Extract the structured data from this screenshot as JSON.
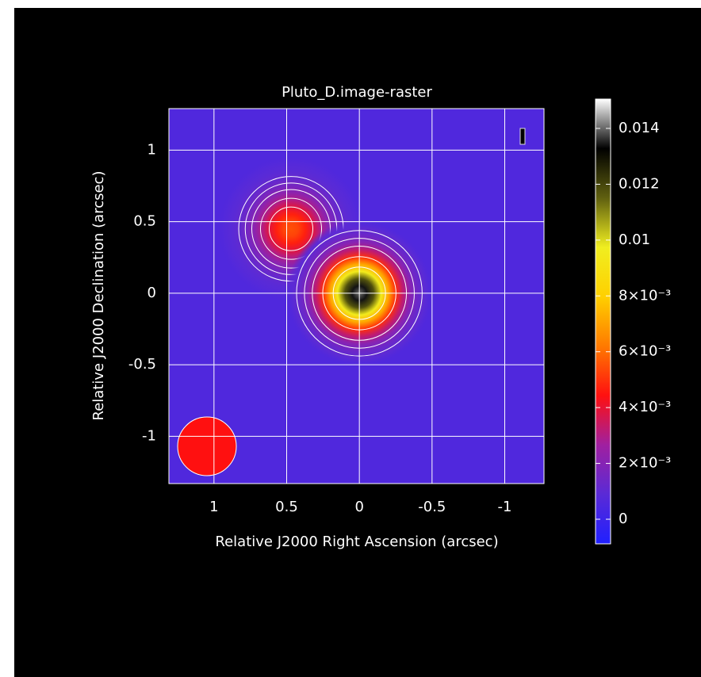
{
  "chart_data": {
    "type": "raster",
    "title": "Pluto_D.image-raster",
    "x_label": "Relative J2000 Right Ascension (arcsec)",
    "y_label": "Relative J2000 Declination (arcsec)",
    "xlim": [
      1.31,
      -1.27
    ],
    "xticks": [
      1,
      0.5,
      0,
      -0.5,
      -1
    ],
    "ylim": [
      -1.33,
      1.29
    ],
    "yticks": [
      -1,
      -0.5,
      0,
      0.5,
      1
    ],
    "grid": true,
    "sources": [
      {
        "x": 0.47,
        "y": 0.45,
        "peak": 0.0055
      },
      {
        "x": 0,
        "y": 0,
        "peak": 0.014
      }
    ],
    "background_value": 0.0006,
    "clim": [
      -0.00088,
      0.01505
    ],
    "cticks": [
      0,
      {
        "value": 0.002,
        "label": "2×10⁻³"
      },
      {
        "value": 0.004,
        "label": "4×10⁻³"
      },
      {
        "value": 0.006,
        "label": "6×10⁻³"
      },
      {
        "value": 0.008,
        "label": "8×10⁻³"
      },
      0.01,
      0.012,
      0.014
    ],
    "colormap": [
      "#2020ff",
      "#5a2ad6",
      "#a020a0",
      "#ff1010",
      "#ff7a00",
      "#ffd000",
      "#f0ee20",
      "#606010",
      "#000000",
      "#ffffff"
    ]
  }
}
